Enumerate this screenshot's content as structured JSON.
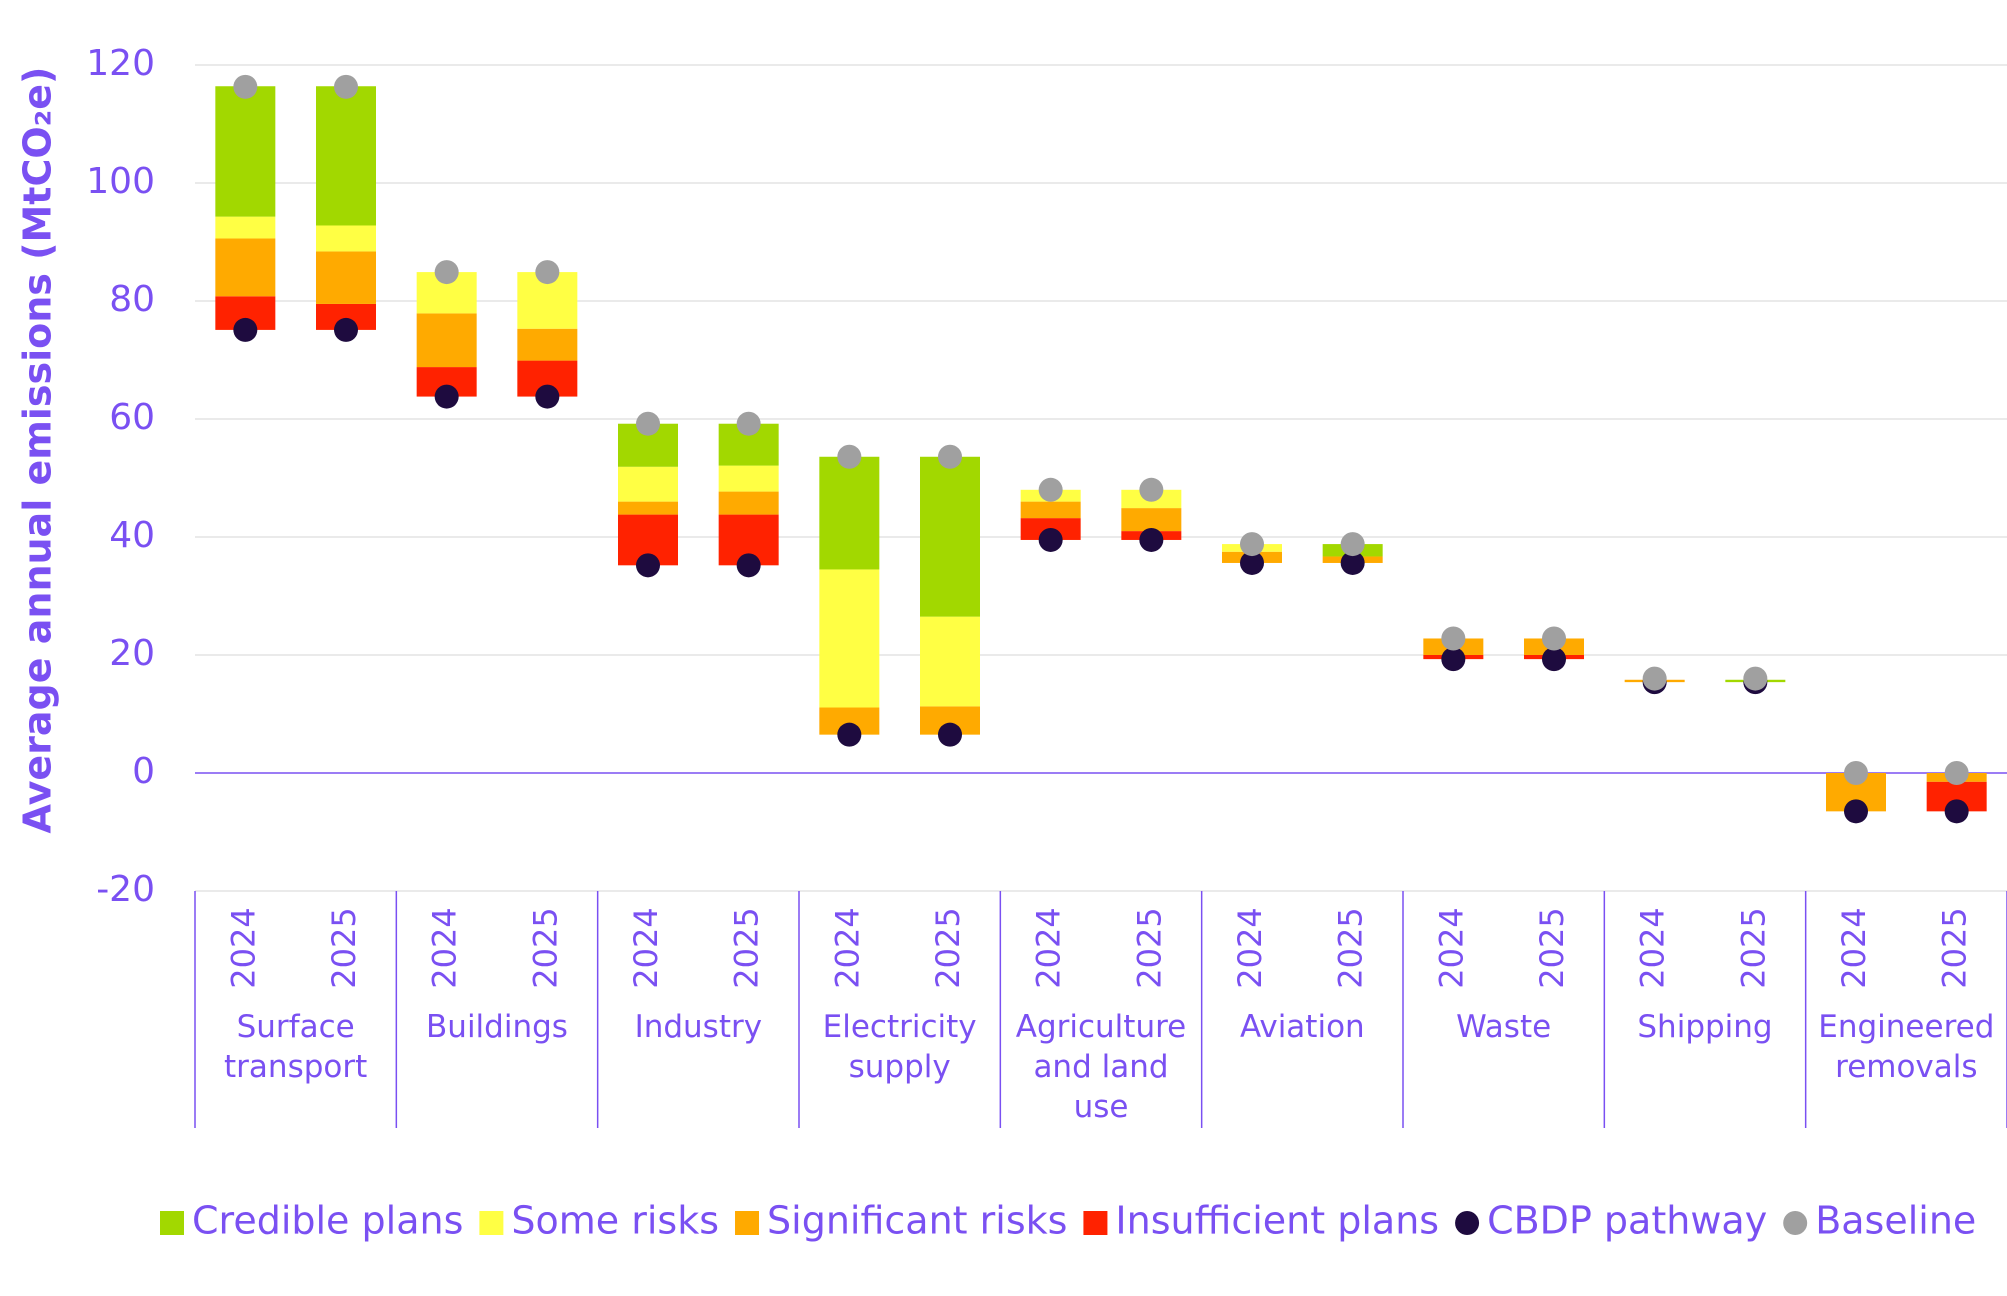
{
  "chart_data": {
    "type": "bar",
    "stacked": true,
    "y_label": "Average annual emissions (MtCO₂e)",
    "categories": [
      "2024",
      "2025",
      "2024",
      "2025",
      "2024",
      "2025",
      "2024",
      "2025",
      "2024",
      "2025",
      "2024",
      "2025",
      "2024",
      "2025",
      "2024",
      "2025",
      "2024",
      "2025"
    ],
    "groups": [
      "Surface transport",
      "Buildings",
      "Industry",
      "Electricity supply",
      "Agriculture and land use",
      "Aviation",
      "Waste",
      "Shipping",
      "Engineered removals"
    ],
    "ylim": [
      -20,
      120
    ],
    "yticks": [
      -20,
      0,
      20,
      40,
      60,
      80,
      100,
      120
    ],
    "grid": true,
    "series": [
      {
        "name": "Credible plans",
        "type": "bar",
        "color": "#a2d800",
        "values": [
          22.1,
          23.6,
          0,
          0,
          7.3,
          7.1,
          19.1,
          27.1,
          0,
          0,
          0,
          2.1,
          0,
          0,
          0,
          0.4,
          0,
          0
        ]
      },
      {
        "name": "Some risks",
        "type": "bar",
        "color": "#ffff44",
        "values": [
          3.7,
          4.4,
          7.0,
          9.6,
          5.9,
          4.4,
          23.4,
          15.2,
          2.0,
          3.1,
          1.3,
          0,
          0,
          0,
          0,
          0,
          0,
          0
        ]
      },
      {
        "name": "Significant risks",
        "type": "bar",
        "color": "#ffaa00",
        "values": [
          9.8,
          8.9,
          9.1,
          5.4,
          2.2,
          3.9,
          4.6,
          4.8,
          2.8,
          3.9,
          1.9,
          1.1,
          2.8,
          2.8,
          0.4,
          0,
          -6.5,
          -1.5
        ]
      },
      {
        "name": "Insufficient plans",
        "type": "bar",
        "color": "#ff2200",
        "values": [
          5.7,
          4.4,
          5.0,
          6.1,
          8.6,
          8.6,
          0,
          0,
          3.7,
          1.5,
          0,
          0,
          0.7,
          0.7,
          0,
          0,
          0,
          -5.0
        ]
      },
      {
        "name": "CBDP pathway",
        "type": "scatter",
        "color": "#1e0b3f",
        "values": [
          75.1,
          75.1,
          63.8,
          63.8,
          35.2,
          35.2,
          6.5,
          6.5,
          39.5,
          39.5,
          35.6,
          35.6,
          19.3,
          19.3,
          15.4,
          15.4,
          -6.5,
          -6.5
        ]
      },
      {
        "name": "Baseline",
        "type": "scatter",
        "color": "#a0a0a0",
        "values": [
          116.3,
          116.3,
          84.9,
          84.9,
          59.2,
          59.2,
          53.6,
          53.6,
          48.0,
          48.0,
          38.8,
          38.8,
          22.8,
          22.8,
          16.0,
          16.0,
          0,
          0
        ]
      }
    ]
  }
}
